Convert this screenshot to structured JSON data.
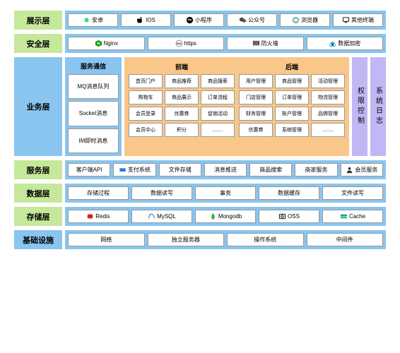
{
  "colors": {
    "blue": "#89c5ef",
    "green": "#c5e89a",
    "orange": "#f9c78a",
    "purple": "#c2b7f5",
    "border": "#999",
    "text": "#000"
  },
  "layers": [
    {
      "id": "presentation",
      "label": "展示层",
      "labelColor": "green",
      "bg": "blue",
      "items": [
        {
          "icon": "android",
          "text": "安卓"
        },
        {
          "icon": "apple",
          "text": "IOS"
        },
        {
          "icon": "miniprog",
          "text": "小程序"
        },
        {
          "icon": "wechat",
          "text": "公众号"
        },
        {
          "icon": "ie",
          "text": "浏览器"
        },
        {
          "icon": "monitor",
          "text": "其他终端"
        }
      ]
    },
    {
      "id": "security",
      "label": "安全层",
      "labelColor": "green",
      "bg": "blue",
      "items": [
        {
          "icon": "nginx",
          "text": "Nginx"
        },
        {
          "icon": "ssl",
          "text": "https"
        },
        {
          "icon": "firewall",
          "text": "防火墙"
        },
        {
          "icon": "encrypt",
          "text": "数据加密"
        }
      ]
    },
    {
      "id": "business",
      "label": "业务层",
      "labelColor": "blue",
      "type": "biz",
      "left": {
        "header": "服务通信",
        "items": [
          "MQ消息队列",
          "Socket消息",
          "IM即时消息"
        ]
      },
      "front": {
        "header": "前端",
        "rows": [
          [
            "首页门户",
            "商品推荐",
            "商品搜索"
          ],
          [
            "购物车",
            "商品展示",
            "订单流程"
          ],
          [
            "会员登录",
            "优惠券",
            "促销活动"
          ],
          [
            "会员中心",
            "积分",
            "........"
          ]
        ]
      },
      "back": {
        "header": "后端",
        "rows": [
          [
            "用户管理",
            "商品管理",
            "活动管理"
          ],
          [
            "门店管理",
            "订单管理",
            "物流管理"
          ],
          [
            "财务管理",
            "账户管理",
            "品牌管理"
          ],
          [
            "优惠券",
            "系统管理",
            "........"
          ]
        ]
      },
      "right": [
        "权限控制",
        "系统日志"
      ]
    },
    {
      "id": "service",
      "label": "服务层",
      "labelColor": "green",
      "bg": "blue",
      "items": [
        {
          "text": "客户端API"
        },
        {
          "icon": "pay",
          "text": "支付系统"
        },
        {
          "text": "文件存储"
        },
        {
          "text": "消息推送"
        },
        {
          "text": "商品搜索"
        },
        {
          "text": "商家服务"
        },
        {
          "icon": "user",
          "text": "会员服务"
        }
      ]
    },
    {
      "id": "data",
      "label": "数据层",
      "labelColor": "green",
      "bg": "blue",
      "items": [
        {
          "text": "存储过程"
        },
        {
          "text": "数据读写"
        },
        {
          "text": "事务"
        },
        {
          "text": "数据缓存"
        },
        {
          "text": "文件读写"
        }
      ]
    },
    {
      "id": "storage",
      "label": "存储层",
      "labelColor": "green",
      "bg": "blue",
      "items": [
        {
          "icon": "redis",
          "text": "Redis"
        },
        {
          "icon": "mysql",
          "text": "MySQL"
        },
        {
          "icon": "mongo",
          "text": "Mongodb"
        },
        {
          "icon": "oss",
          "text": "OSS"
        },
        {
          "icon": "cache",
          "text": "Cache"
        }
      ]
    },
    {
      "id": "infra",
      "label": "基础设施",
      "labelColor": "blue",
      "bg": "blue",
      "items": [
        {
          "text": "网络"
        },
        {
          "text": "独立服务器"
        },
        {
          "text": "操作系统"
        },
        {
          "text": "中间件"
        }
      ]
    }
  ]
}
